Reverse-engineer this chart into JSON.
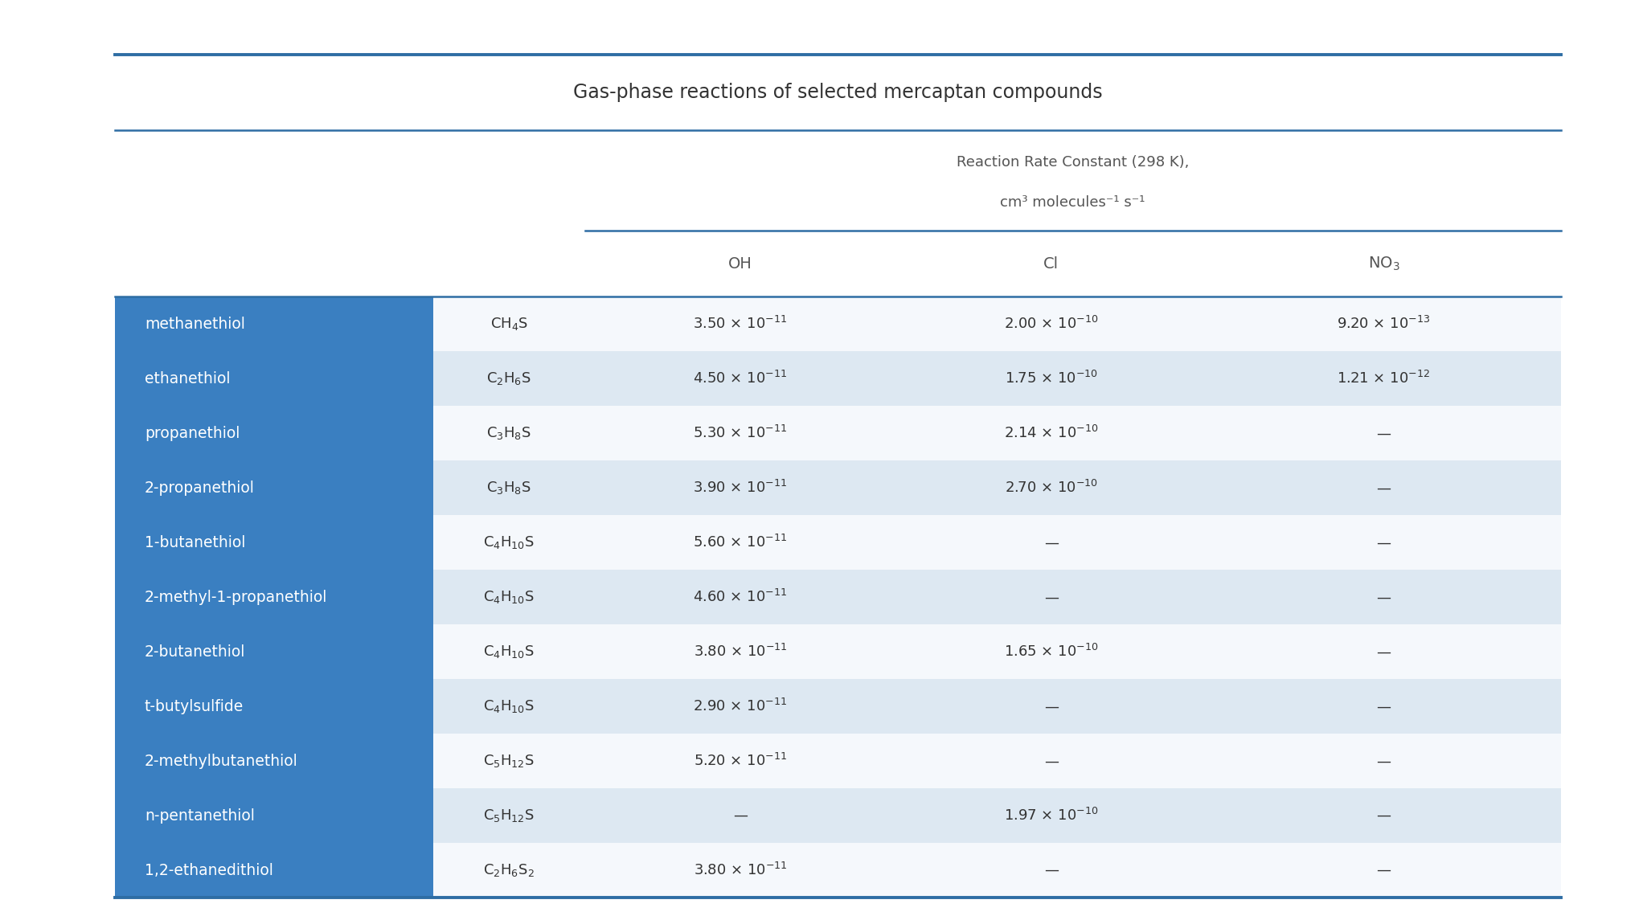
{
  "title": "Gas-phase reactions of selected mercaptan compounds",
  "spanner_line1": "Reaction Rate Constant (298 K),",
  "spanner_line2": "cm³ molecules⁻¹ s⁻¹",
  "stub_col_color": "#3a7fc1",
  "stub_text_color": "#ffffff",
  "row_alt_color": "#dde8f2",
  "row_color": "#f5f8fc",
  "border_color": "#2e6da4",
  "body_text_color": "#333333",
  "title_color": "#333333",
  "header_text_color": "#555555",
  "rows": [
    {
      "name": "methanethiol",
      "formula": "CH$_4$S",
      "OH": "3.50 × 10$^{-11}$",
      "Cl": "2.00 × 10$^{-10}$",
      "NO3": "9.20 × 10$^{-13}$"
    },
    {
      "name": "ethanethiol",
      "formula": "C$_2$H$_6$S",
      "OH": "4.50 × 10$^{-11}$",
      "Cl": "1.75 × 10$^{-10}$",
      "NO3": "1.21 × 10$^{-12}$"
    },
    {
      "name": "propanethiol",
      "formula": "C$_3$H$_8$S",
      "OH": "5.30 × 10$^{-11}$",
      "Cl": "2.14 × 10$^{-10}$",
      "NO3": "—"
    },
    {
      "name": "2-propanethiol",
      "formula": "C$_3$H$_8$S",
      "OH": "3.90 × 10$^{-11}$",
      "Cl": "2.70 × 10$^{-10}$",
      "NO3": "—"
    },
    {
      "name": "1-butanethiol",
      "formula": "C$_4$H$_{10}$S",
      "OH": "5.60 × 10$^{-11}$",
      "Cl": "—",
      "NO3": "—"
    },
    {
      "name": "2-methyl-1-propanethiol",
      "formula": "C$_4$H$_{10}$S",
      "OH": "4.60 × 10$^{-11}$",
      "Cl": "—",
      "NO3": "—"
    },
    {
      "name": "2-butanethiol",
      "formula": "C$_4$H$_{10}$S",
      "OH": "3.80 × 10$^{-11}$",
      "Cl": "1.65 × 10$^{-10}$",
      "NO3": "—"
    },
    {
      "name": "t-butylsulfide",
      "formula": "C$_4$H$_{10}$S",
      "OH": "2.90 × 10$^{-11}$",
      "Cl": "—",
      "NO3": "—"
    },
    {
      "name": "2-methylbutanethiol",
      "formula": "C$_5$H$_{12}$S",
      "OH": "5.20 × 10$^{-11}$",
      "Cl": "—",
      "NO3": "—"
    },
    {
      "name": "n-pentanethiol",
      "formula": "C$_5$H$_{12}$S",
      "OH": "—",
      "Cl": "1.97 × 10$^{-10}$",
      "NO3": "—"
    },
    {
      "name": "1,2-ethanedithiol",
      "formula": "C$_2$H$_6$S$_2$",
      "OH": "3.80 × 10$^{-11}$",
      "Cl": "—",
      "NO3": "—"
    }
  ],
  "figsize": [
    20.44,
    11.4
  ],
  "dpi": 100
}
